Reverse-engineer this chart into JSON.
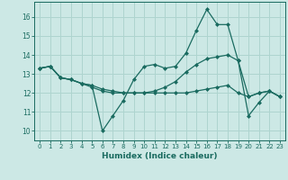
{
  "xlabel": "Humidex (Indice chaleur)",
  "xlim": [
    -0.5,
    23.5
  ],
  "ylim": [
    9.5,
    16.8
  ],
  "yticks": [
    10,
    11,
    12,
    13,
    14,
    15,
    16
  ],
  "xticks": [
    0,
    1,
    2,
    3,
    4,
    5,
    6,
    7,
    8,
    9,
    10,
    11,
    12,
    13,
    14,
    15,
    16,
    17,
    18,
    19,
    20,
    21,
    22,
    23
  ],
  "bg_color": "#cce8e5",
  "grid_color": "#aed4cf",
  "line_color": "#1a6b60",
  "lines": [
    [
      13.3,
      13.4,
      12.8,
      12.7,
      12.5,
      12.4,
      10.0,
      10.8,
      11.6,
      12.7,
      13.4,
      13.5,
      13.3,
      13.4,
      14.1,
      15.3,
      16.4,
      15.6,
      15.6,
      13.7,
      10.8,
      11.5,
      12.1,
      11.8
    ],
    [
      13.3,
      13.4,
      12.8,
      12.7,
      12.5,
      12.4,
      12.2,
      12.1,
      12.0,
      12.0,
      12.0,
      12.0,
      12.0,
      12.0,
      12.0,
      12.1,
      12.2,
      12.3,
      12.4,
      12.0,
      11.8,
      12.0,
      12.1,
      11.8
    ],
    [
      13.3,
      13.4,
      12.8,
      12.7,
      12.5,
      12.3,
      12.1,
      12.0,
      12.0,
      12.0,
      12.0,
      12.1,
      12.3,
      12.6,
      13.1,
      13.5,
      13.8,
      13.9,
      14.0,
      13.7,
      11.8,
      12.0,
      12.1,
      11.8
    ]
  ]
}
